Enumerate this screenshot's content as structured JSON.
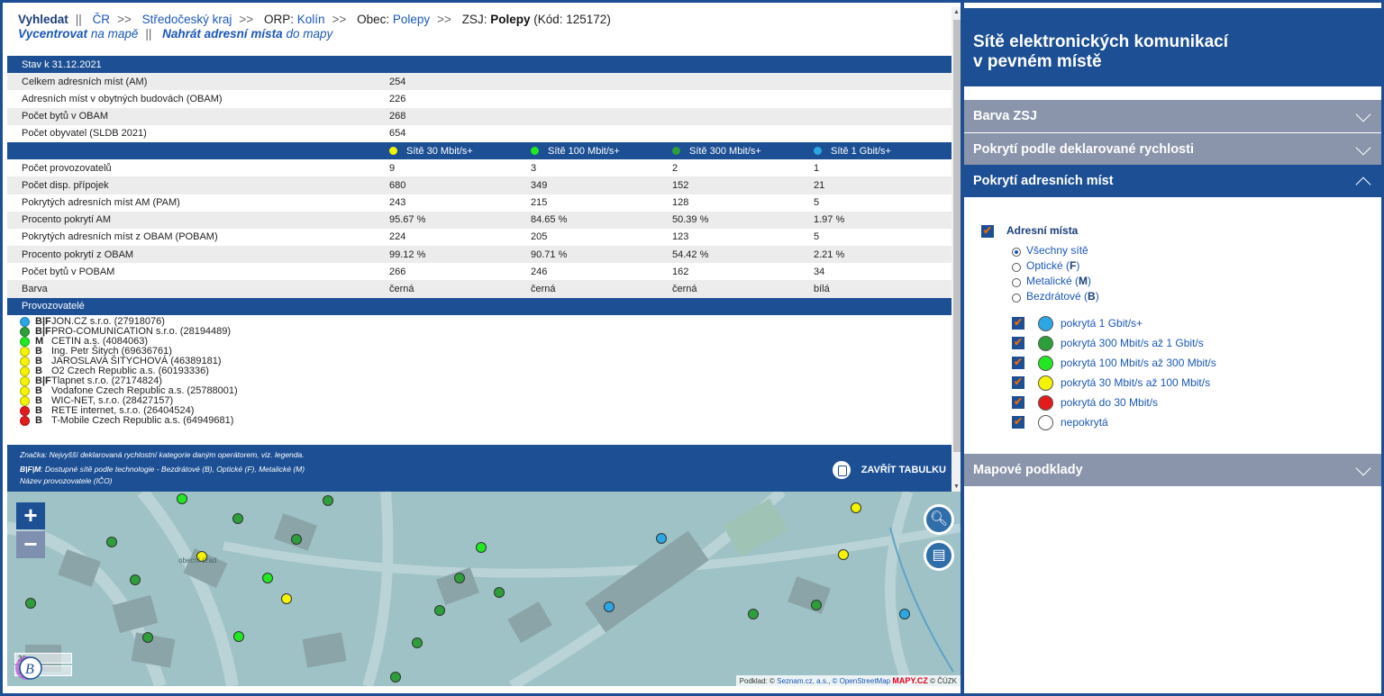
{
  "breadcrumb": {
    "search": "Vyhledat",
    "sep1": "||",
    "country": "ČR",
    "arrow": ">>",
    "region": "Středočeský kraj",
    "orp_label": "ORP:",
    "orp": "Kolín",
    "obec_label": "Obec:",
    "obec": "Polepy",
    "zsj_label": "ZSJ:",
    "zsj": "Polepy",
    "zsj_code": "(Kód: 125172)",
    "center_bold": "Vycentrovat",
    "center_rest": "na mapě",
    "sep2": "||",
    "upload_bold": "Nahrát adresní místa",
    "upload_rest": "do mapy"
  },
  "stats": {
    "header": "Stav k 31.12.2021",
    "rows": [
      {
        "label": "Celkem adresních míst (AM)",
        "value": "254"
      },
      {
        "label": "Adresních míst v obytných budovách (OBAM)",
        "value": "226"
      },
      {
        "label": "Počet bytů v OBAM",
        "value": "268"
      },
      {
        "label": "Počet obyvatel (SLDB 2021)",
        "value": "654"
      }
    ]
  },
  "speeds": {
    "columns": [
      {
        "label": "Sítě 30 Mbit/s+",
        "color": "#f4f400"
      },
      {
        "label": "Sítě 100 Mbit/s+",
        "color": "#21e821"
      },
      {
        "label": "Sítě 300 Mbit/s+",
        "color": "#2d9f3a"
      },
      {
        "label": "Sítě 1 Gbit/s+",
        "color": "#2aa7e4"
      }
    ],
    "rows": [
      {
        "label": "Počet provozovatelů",
        "v": [
          "9",
          "3",
          "2",
          "1"
        ]
      },
      {
        "label": "Počet disp. přípojek",
        "v": [
          "680",
          "349",
          "152",
          "21"
        ]
      },
      {
        "label": "Pokrytých adresních míst AM (PAM)",
        "v": [
          "243",
          "215",
          "128",
          "5"
        ]
      },
      {
        "label": "Procento pokrytí AM",
        "v": [
          "95.67 %",
          "84.65 %",
          "50.39 %",
          "1.97 %"
        ]
      },
      {
        "label": "Pokrytých adresních míst z OBAM (POBAM)",
        "v": [
          "224",
          "205",
          "123",
          "5"
        ]
      },
      {
        "label": "Procento pokrytí z OBAM",
        "v": [
          "99.12 %",
          "90.71 %",
          "54.42 %",
          "2.21 %"
        ]
      },
      {
        "label": "Počet bytů v POBAM",
        "v": [
          "266",
          "246",
          "162",
          "34"
        ]
      },
      {
        "label": "Barva",
        "v": [
          "černá",
          "černá",
          "černá",
          "bílá"
        ]
      }
    ]
  },
  "providers": {
    "header": "Provozovatelé",
    "items": [
      {
        "tech": "B|F",
        "name": "JON.CZ s.r.o. (27918076)",
        "color": "#2aa7e4"
      },
      {
        "tech": "B|F",
        "name": "PRO-COMUNICATION s.r.o. (28194489)",
        "color": "#2d9f3a"
      },
      {
        "tech": "M",
        "name": "CETIN a.s. (4084063)",
        "color": "#21e821"
      },
      {
        "tech": "B",
        "name": "Ing. Petr Šitych (69636761)",
        "color": "#f4f400"
      },
      {
        "tech": "B",
        "name": "JAROSLAVA ŠITYCHOVÁ (46389181)",
        "color": "#f4f400"
      },
      {
        "tech": "B",
        "name": "O2 Czech Republic a.s. (60193336)",
        "color": "#f4f400"
      },
      {
        "tech": "B|F",
        "name": "Tlapnet s.r.o. (27174824)",
        "color": "#f4f400"
      },
      {
        "tech": "B",
        "name": "Vodafone Czech Republic a.s. (25788001)",
        "color": "#f4f400"
      },
      {
        "tech": "B",
        "name": "WIC-NET, s.r.o. (28427157)",
        "color": "#f4f400"
      },
      {
        "tech": "B",
        "name": "RETE internet, s.r.o. (26404524)",
        "color": "#e31b1b"
      },
      {
        "tech": "B",
        "name": "T-Mobile Czech Republic a.s. (64949681)",
        "color": "#e31b1b"
      }
    ]
  },
  "footer": {
    "note1": "Značka: Nejvyšší deklarovaná rychlostní kategorie daným operátorem, viz. legenda.",
    "note2_bold": "B|F|M",
    "note2_rest": ": Dostupné sítě podle technologie - Bezdrátové (B), Optické (F), Metalické (M)",
    "note3": "Název provozovatele (IČO)",
    "close_label": "ZAVŘÍT TABULKU"
  },
  "map": {
    "zoom_in": "+",
    "zoom_out": "−",
    "scale_m": "30 m",
    "scale_ft": "100 ft",
    "street_label": "obecní úřad",
    "attribution_prefix": "Podklad: ©",
    "attribution_seznam": "Seznam.cz, a.s.",
    "attribution_osm": "© OpenStreetMap",
    "attribution_mapy": "MAPY.CZ",
    "attribution_cuzk": "© ČÚZK"
  },
  "right": {
    "title_line1": "Sítě elektronických komunikací",
    "title_line2": "v pevném místě",
    "sections": {
      "barva_zsj": "Barva ZSJ",
      "pokryti_rychlost": "Pokrytí podle deklarované rychlosti",
      "pokryti_adresnich": "Pokrytí adresních míst",
      "mapove_podklady": "Mapové podklady"
    },
    "adresni_mista": "Adresní místa",
    "radios": [
      {
        "label": "Všechny sítě",
        "bold": ""
      },
      {
        "label": "Optické (",
        "bold": "F",
        "end": ")"
      },
      {
        "label": "Metalické (",
        "bold": "M",
        "end": ")"
      },
      {
        "label": "Bezdrátové (",
        "bold": "B",
        "end": ")"
      }
    ],
    "legend": [
      {
        "label": "pokrytá 1 Gbit/s+",
        "color": "#2aa7e4"
      },
      {
        "label": "pokrytá 300 Mbit/s až 1 Gbit/s",
        "color": "#2d9f3a"
      },
      {
        "label": "pokrytá 100 Mbit/s až 300 Mbit/s",
        "color": "#21e821"
      },
      {
        "label": "pokrytá 30 Mbit/s až 100 Mbit/s",
        "color": "#f4f400"
      },
      {
        "label": "pokrytá do 30 Mbit/s",
        "color": "#e31b1b"
      },
      {
        "label": "nepokrytá",
        "color": "#ffffff"
      }
    ],
    "checkmark": "✔"
  }
}
